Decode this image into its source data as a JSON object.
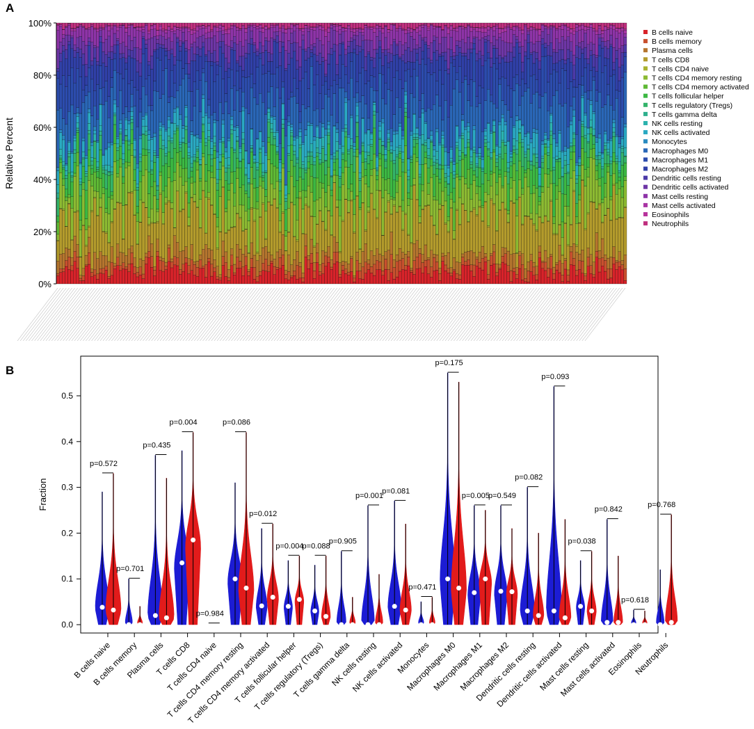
{
  "panels": {
    "a_label": "A",
    "b_label": "B"
  },
  "colors": {
    "cell_types": [
      "#d8232a",
      "#c8502e",
      "#b5752e",
      "#b39b2c",
      "#a9b22f",
      "#8cba32",
      "#5fb935",
      "#3cb843",
      "#34b46a",
      "#2fb08e",
      "#2cb3ae",
      "#2aa9c2",
      "#2a8bc0",
      "#2a67b7",
      "#2c4cad",
      "#3040a8",
      "#4c3aa8",
      "#6e36a6",
      "#8e34a8",
      "#a935a4",
      "#b8339c",
      "#c0307f"
    ],
    "group1": "#1c1cd4",
    "group2": "#e21b1b",
    "median_point": "#ffffff"
  },
  "chart_data": [
    {
      "type": "stacked-bar",
      "title": "",
      "xlabel": "",
      "ylabel": "Relative Percent",
      "ylim": [
        0,
        100
      ],
      "yticks": [
        "0%",
        "20%",
        "40%",
        "60%",
        "80%",
        "100%"
      ],
      "n_samples": 200,
      "sample_labels_legible": false,
      "legend_position": "right",
      "series_names": [
        "B cells naive",
        "B cells memory",
        "Plasma cells",
        "T cells CD8",
        "T cells CD4 naive",
        "T cells CD4 memory resting",
        "T cells CD4 memory activated",
        "T cells follicular helper",
        "T cells regulatory (Tregs)",
        "T cells gamma delta",
        "NK cells resting",
        "NK cells activated",
        "Monocytes",
        "Macrophages M0",
        "Macrophages M1",
        "Macrophages M2",
        "Dendritic cells resting",
        "Dendritic cells activated",
        "Mast cells resting",
        "Mast cells activated",
        "Eosinophils",
        "Neutrophils"
      ],
      "mean_fraction_percent": [
        5,
        3,
        4,
        14,
        0.3,
        11,
        5,
        6,
        4,
        1,
        2,
        5,
        1,
        13,
        10,
        8,
        3,
        4,
        4,
        1,
        0.3,
        1.4
      ]
    },
    {
      "type": "violin",
      "title": "",
      "xlabel": "",
      "ylabel": "Fraction",
      "ylim": [
        0,
        0.57
      ],
      "yticks": [
        "0.0",
        "0.1",
        "0.2",
        "0.3",
        "0.4",
        "0.5"
      ],
      "groups": [
        "group1",
        "group2"
      ],
      "categories": [
        "B cells naive",
        "B cells memory",
        "Plasma cells",
        "T cells CD8",
        "T cells CD4 naive",
        "T cells CD4 memory resting",
        "T cells CD4 memory activated",
        "T cells follicular helper",
        "T cells regulatory (Tregs)",
        "T cells gamma delta",
        "NK cells resting",
        "NK cells activated",
        "Monocytes",
        "Macrophages M0",
        "Macrophages M1",
        "Macrophages M2",
        "Dendritic cells resting",
        "Dendritic cells activated",
        "Mast cells resting",
        "Mast cells activated",
        "Eosinophils",
        "Neutrophils"
      ],
      "p_values": [
        "p=0.572",
        "p=0.701",
        "p=0.435",
        "p=0.004",
        "p=0.984",
        "p=0.086",
        "p=0.012",
        "p=0.004",
        "p=0.088",
        "p=0.905",
        "p=0.001",
        "p=0.081",
        "p=0.471",
        "p=0.175",
        "p=0.005",
        "p=0.549",
        "p=0.082",
        "p=0.093",
        "p=0.038",
        "p=0.842",
        "p=0.618",
        "p=0.768"
      ],
      "series": [
        {
          "name": "group1",
          "max": [
            0.29,
            0.1,
            0.37,
            0.38,
            0.002,
            0.31,
            0.21,
            0.14,
            0.13,
            0.16,
            0.26,
            0.27,
            0.05,
            0.55,
            0.26,
            0.26,
            0.3,
            0.52,
            0.14,
            0.23,
            0.032,
            0.12
          ],
          "median": [
            0.038,
            0.0,
            0.02,
            0.135,
            0.0,
            0.1,
            0.041,
            0.04,
            0.03,
            0.0,
            0.0,
            0.04,
            0.0,
            0.1,
            0.07,
            0.073,
            0.03,
            0.03,
            0.04,
            0.005,
            0.0,
            0.0
          ]
        },
        {
          "name": "group2",
          "max": [
            0.33,
            0.04,
            0.32,
            0.42,
            0.001,
            0.42,
            0.22,
            0.15,
            0.15,
            0.06,
            0.11,
            0.22,
            0.06,
            0.53,
            0.25,
            0.21,
            0.2,
            0.23,
            0.16,
            0.15,
            0.03,
            0.24
          ],
          "median": [
            0.032,
            0.0,
            0.015,
            0.185,
            0.0,
            0.08,
            0.06,
            0.055,
            0.018,
            0.0,
            0.0,
            0.032,
            0.0,
            0.08,
            0.1,
            0.072,
            0.02,
            0.015,
            0.03,
            0.005,
            0.0,
            0.005
          ]
        }
      ]
    }
  ]
}
